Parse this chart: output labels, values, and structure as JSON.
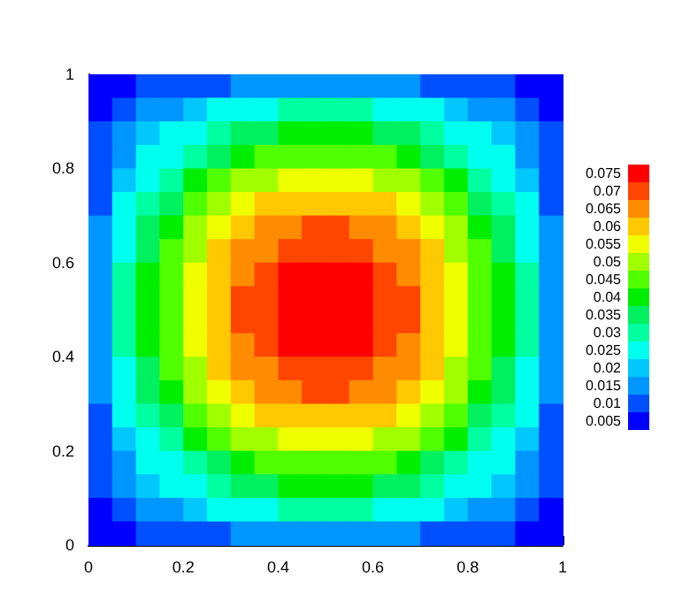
{
  "chart_data": {
    "type": "heatmap",
    "x": [
      0.025,
      0.075,
      0.125,
      0.175,
      0.225,
      0.275,
      0.325,
      0.375,
      0.425,
      0.475,
      0.525,
      0.575,
      0.625,
      0.675,
      0.725,
      0.775,
      0.825,
      0.875,
      0.925,
      0.975
    ],
    "y": [
      0.975,
      0.925,
      0.875,
      0.825,
      0.775,
      0.725,
      0.675,
      0.625,
      0.575,
      0.525,
      0.475,
      0.425,
      0.375,
      0.325,
      0.275,
      0.225,
      0.175,
      0.125,
      0.075,
      0.025
    ],
    "xlim": [
      0,
      1
    ],
    "ylim": [
      0,
      1
    ],
    "xticks": [
      0,
      0.2,
      0.4,
      0.6,
      0.8,
      1
    ],
    "yticks": [
      0,
      0.2,
      0.4,
      0.6,
      0.8,
      1
    ],
    "cticks": [
      0.005,
      0.01,
      0.015,
      0.02,
      0.025,
      0.03,
      0.035,
      0.04,
      0.045,
      0.05,
      0.055,
      0.06,
      0.065,
      0.07,
      0.075
    ],
    "colors": [
      "#0000ff",
      "#0050ff",
      "#0096ff",
      "#00c8ff",
      "#00ffee",
      "#00ffa0",
      "#00f060",
      "#00ee00",
      "#50ff00",
      "#a0ff00",
      "#f0ff00",
      "#ffc800",
      "#ff8c00",
      "#ff4600",
      "#ff0000"
    ],
    "cells": [
      [
        0.003,
        0.006,
        0.008,
        0.009,
        0.011,
        0.012,
        0.013,
        0.014,
        0.015,
        0.015,
        0.015,
        0.015,
        0.014,
        0.013,
        0.012,
        0.011,
        0.009,
        0.008,
        0.006,
        0.003
      ],
      [
        0.006,
        0.011,
        0.015,
        0.017,
        0.02,
        0.023,
        0.026,
        0.027,
        0.029,
        0.029,
        0.029,
        0.029,
        0.027,
        0.026,
        0.023,
        0.02,
        0.017,
        0.015,
        0.011,
        0.006
      ],
      [
        0.008,
        0.015,
        0.02,
        0.023,
        0.027,
        0.031,
        0.034,
        0.036,
        0.038,
        0.039,
        0.039,
        0.038,
        0.036,
        0.034,
        0.031,
        0.027,
        0.023,
        0.02,
        0.015,
        0.008
      ],
      [
        0.009,
        0.017,
        0.023,
        0.027,
        0.032,
        0.037,
        0.041,
        0.043,
        0.045,
        0.046,
        0.046,
        0.045,
        0.043,
        0.041,
        0.037,
        0.032,
        0.027,
        0.023,
        0.017,
        0.009
      ],
      [
        0.011,
        0.02,
        0.027,
        0.032,
        0.038,
        0.043,
        0.048,
        0.05,
        0.053,
        0.054,
        0.054,
        0.053,
        0.05,
        0.048,
        0.043,
        0.038,
        0.032,
        0.027,
        0.02,
        0.011
      ],
      [
        0.012,
        0.023,
        0.031,
        0.037,
        0.043,
        0.05,
        0.055,
        0.058,
        0.061,
        0.062,
        0.062,
        0.061,
        0.058,
        0.055,
        0.05,
        0.043,
        0.037,
        0.031,
        0.023,
        0.012
      ],
      [
        0.013,
        0.026,
        0.034,
        0.041,
        0.048,
        0.055,
        0.06,
        0.064,
        0.067,
        0.068,
        0.068,
        0.067,
        0.064,
        0.06,
        0.055,
        0.048,
        0.041,
        0.034,
        0.026,
        0.013
      ],
      [
        0.014,
        0.027,
        0.036,
        0.043,
        0.05,
        0.058,
        0.064,
        0.067,
        0.071,
        0.072,
        0.072,
        0.071,
        0.067,
        0.064,
        0.058,
        0.05,
        0.043,
        0.036,
        0.027,
        0.014
      ],
      [
        0.015,
        0.029,
        0.038,
        0.045,
        0.053,
        0.061,
        0.067,
        0.071,
        0.075,
        0.076,
        0.076,
        0.075,
        0.071,
        0.067,
        0.061,
        0.053,
        0.045,
        0.038,
        0.029,
        0.015
      ],
      [
        0.015,
        0.029,
        0.039,
        0.046,
        0.054,
        0.062,
        0.068,
        0.072,
        0.076,
        0.077,
        0.077,
        0.076,
        0.072,
        0.068,
        0.062,
        0.054,
        0.046,
        0.039,
        0.029,
        0.015
      ],
      [
        0.015,
        0.029,
        0.039,
        0.046,
        0.054,
        0.062,
        0.068,
        0.072,
        0.076,
        0.077,
        0.077,
        0.076,
        0.072,
        0.068,
        0.062,
        0.054,
        0.046,
        0.039,
        0.029,
        0.015
      ],
      [
        0.015,
        0.029,
        0.038,
        0.045,
        0.053,
        0.061,
        0.067,
        0.071,
        0.075,
        0.076,
        0.076,
        0.075,
        0.071,
        0.067,
        0.061,
        0.053,
        0.045,
        0.038,
        0.029,
        0.015
      ],
      [
        0.014,
        0.027,
        0.036,
        0.043,
        0.05,
        0.058,
        0.064,
        0.067,
        0.071,
        0.072,
        0.072,
        0.071,
        0.067,
        0.064,
        0.058,
        0.05,
        0.043,
        0.036,
        0.027,
        0.014
      ],
      [
        0.013,
        0.026,
        0.034,
        0.041,
        0.048,
        0.055,
        0.06,
        0.064,
        0.067,
        0.068,
        0.068,
        0.067,
        0.064,
        0.06,
        0.055,
        0.048,
        0.041,
        0.034,
        0.026,
        0.013
      ],
      [
        0.012,
        0.023,
        0.031,
        0.037,
        0.043,
        0.05,
        0.055,
        0.058,
        0.061,
        0.062,
        0.062,
        0.061,
        0.058,
        0.055,
        0.05,
        0.043,
        0.037,
        0.031,
        0.023,
        0.012
      ],
      [
        0.011,
        0.02,
        0.027,
        0.032,
        0.038,
        0.043,
        0.048,
        0.05,
        0.053,
        0.054,
        0.054,
        0.053,
        0.05,
        0.048,
        0.043,
        0.038,
        0.032,
        0.027,
        0.02,
        0.011
      ],
      [
        0.009,
        0.017,
        0.023,
        0.027,
        0.032,
        0.037,
        0.041,
        0.043,
        0.045,
        0.046,
        0.046,
        0.045,
        0.043,
        0.041,
        0.037,
        0.032,
        0.027,
        0.023,
        0.017,
        0.009
      ],
      [
        0.008,
        0.015,
        0.02,
        0.023,
        0.027,
        0.031,
        0.034,
        0.036,
        0.038,
        0.039,
        0.039,
        0.038,
        0.036,
        0.034,
        0.031,
        0.027,
        0.023,
        0.02,
        0.015,
        0.008
      ],
      [
        0.006,
        0.011,
        0.015,
        0.017,
        0.02,
        0.023,
        0.026,
        0.027,
        0.029,
        0.029,
        0.029,
        0.029,
        0.027,
        0.026,
        0.023,
        0.02,
        0.017,
        0.015,
        0.011,
        0.006
      ],
      [
        0.003,
        0.006,
        0.008,
        0.009,
        0.011,
        0.012,
        0.013,
        0.014,
        0.015,
        0.015,
        0.015,
        0.015,
        0.014,
        0.013,
        0.012,
        0.011,
        0.009,
        0.008,
        0.006,
        0.003
      ]
    ]
  }
}
